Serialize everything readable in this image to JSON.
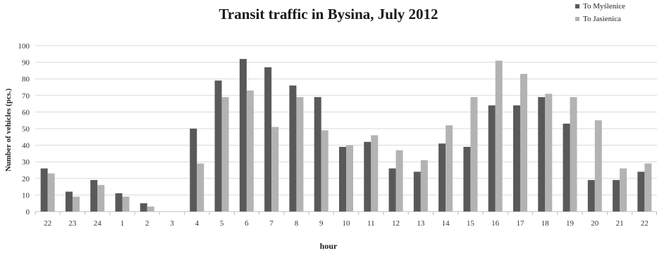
{
  "colors": {
    "series_1": "#595959",
    "series_2": "#b3b3b3",
    "grid": "#d9d9d9",
    "axis": "#bfbfbf"
  },
  "chart_data": {
    "type": "bar",
    "title": "Transit traffic in Bysina, July 2012",
    "xlabel": "hour",
    "ylabel": "Number of vehicles (pcs.)",
    "ylim": [
      0,
      100
    ],
    "yticks": [
      0,
      10,
      20,
      30,
      40,
      50,
      60,
      70,
      80,
      90,
      100
    ],
    "grid": true,
    "legend_position": "top-right",
    "categories": [
      "22",
      "23",
      "24",
      "1",
      "2",
      "3",
      "4",
      "5",
      "6",
      "7",
      "8",
      "9",
      "10",
      "11",
      "12",
      "13",
      "14",
      "15",
      "16",
      "17",
      "18",
      "19",
      "20",
      "21",
      "22"
    ],
    "series": [
      {
        "name": "To Myślenice",
        "values": [
          26,
          12,
          19,
          11,
          5,
          0,
          50,
          79,
          92,
          87,
          76,
          69,
          39,
          42,
          26,
          24,
          41,
          39,
          64,
          64,
          69,
          53,
          19,
          19,
          24
        ]
      },
      {
        "name": "To Jasienica",
        "values": [
          23,
          9,
          16,
          9,
          3,
          0,
          29,
          69,
          73,
          51,
          69,
          49,
          40,
          46,
          37,
          31,
          52,
          69,
          91,
          83,
          71,
          69,
          55,
          26,
          29
        ]
      }
    ]
  }
}
